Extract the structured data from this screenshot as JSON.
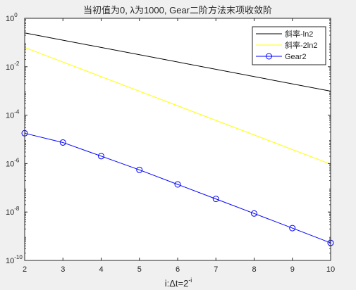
{
  "chart_data": {
    "type": "line",
    "title": "当初值为0, λ为1000, Gear二阶方法末项收敛阶",
    "xlabel_main": "i:Δt=2",
    "xlabel_sup": "-i",
    "ylabel": "",
    "xlim": [
      2,
      10
    ],
    "ylim": [
      1e-10,
      1
    ],
    "yscale": "log",
    "grid": false,
    "legend_position": "top-right",
    "x_ticks": [
      2,
      3,
      4,
      5,
      6,
      7,
      8,
      9,
      10
    ],
    "y_ticks": [
      {
        "mantissa": "10",
        "exp": "0",
        "value": 1
      },
      {
        "mantissa": "10",
        "exp": "-2",
        "value": 0.01
      },
      {
        "mantissa": "10",
        "exp": "-4",
        "value": 0.0001
      },
      {
        "mantissa": "10",
        "exp": "-6",
        "value": 1e-06
      },
      {
        "mantissa": "10",
        "exp": "-8",
        "value": 1e-08
      },
      {
        "mantissa": "10",
        "exp": "-10",
        "value": 1e-10
      }
    ],
    "series": [
      {
        "name": "斜率-ln2",
        "color": "#000000",
        "marker": "none",
        "x": [
          2,
          10
        ],
        "y": [
          0.25,
          0.00098
        ]
      },
      {
        "name": "斜率-2ln2",
        "color": "#ffff00",
        "marker": "none",
        "x": [
          2,
          10
        ],
        "y": [
          0.0625,
          9.5e-07
        ]
      },
      {
        "name": "Gear2",
        "color": "#0000ff",
        "marker": "circle",
        "x": [
          2,
          3,
          4,
          5,
          6,
          7,
          8,
          9,
          10
        ],
        "y": [
          1.79e-05,
          7.42e-06,
          2.03e-06,
          5.5e-07,
          1.38e-07,
          3.47e-08,
          8.7e-09,
          2.16e-09,
          5.3e-10
        ]
      }
    ]
  }
}
